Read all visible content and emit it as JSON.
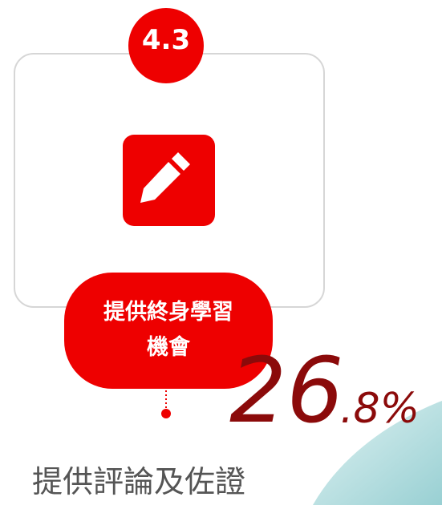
{
  "badge": "4.3",
  "label_lines": [
    "提供終身學習",
    "機會"
  ],
  "stat_main": "26",
  "stat_suffix": ".8%",
  "caption": "提供評論及佐證"
}
